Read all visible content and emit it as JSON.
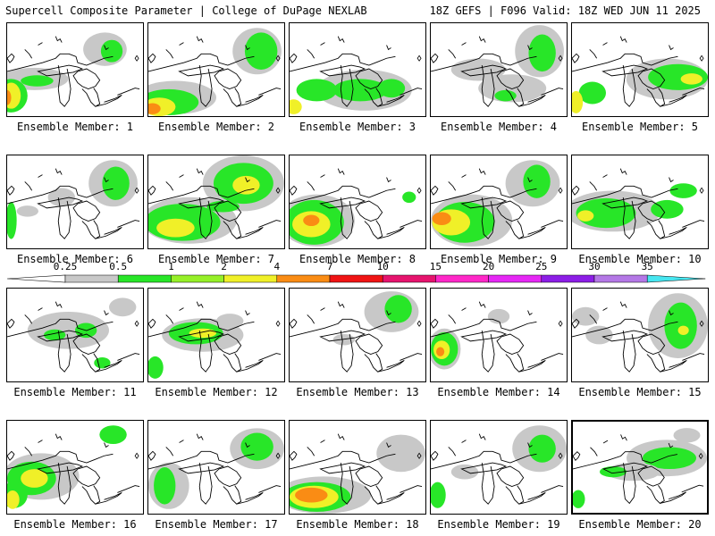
{
  "header": {
    "title": "Supercell Composite Parameter | College of DuPage NEXLAB",
    "run_info": "18Z GEFS | F096 Valid: 18Z WED JUN 11 2025"
  },
  "panel_label_prefix": "Ensemble Member: ",
  "members": [
    {
      "label": "Ensemble Member: 1",
      "blobs": [
        [
          "gray",
          0.72,
          0.28,
          0.16,
          0.18
        ],
        [
          "green",
          0.77,
          0.3,
          0.08,
          0.12
        ],
        [
          "gray",
          0.2,
          0.6,
          0.25,
          0.12
        ],
        [
          "green",
          0.22,
          0.62,
          0.12,
          0.06
        ],
        [
          "green",
          0.03,
          0.78,
          0.12,
          0.18
        ],
        [
          "yellow",
          0.03,
          0.78,
          0.07,
          0.14
        ],
        [
          "orange",
          0.0,
          0.8,
          0.03,
          0.08
        ]
      ]
    },
    {
      "label": "Ensemble Member: 2",
      "blobs": [
        [
          "gray",
          0.8,
          0.3,
          0.18,
          0.25
        ],
        [
          "green",
          0.83,
          0.3,
          0.12,
          0.2
        ],
        [
          "gray",
          0.2,
          0.8,
          0.3,
          0.18
        ],
        [
          "green",
          0.15,
          0.85,
          0.22,
          0.14
        ],
        [
          "yellow",
          0.08,
          0.9,
          0.12,
          0.1
        ],
        [
          "orange",
          0.03,
          0.92,
          0.06,
          0.06
        ]
      ]
    },
    {
      "label": "Ensemble Member: 3",
      "blobs": [
        [
          "gray",
          0.55,
          0.72,
          0.35,
          0.22
        ],
        [
          "green",
          0.52,
          0.72,
          0.2,
          0.12
        ],
        [
          "green",
          0.75,
          0.7,
          0.1,
          0.1
        ],
        [
          "green",
          0.2,
          0.72,
          0.15,
          0.12
        ],
        [
          "yellow",
          0.03,
          0.9,
          0.06,
          0.08
        ]
      ]
    },
    {
      "label": "Ensemble Member: 4",
      "blobs": [
        [
          "gray",
          0.8,
          0.3,
          0.18,
          0.28
        ],
        [
          "green",
          0.82,
          0.32,
          0.1,
          0.2
        ],
        [
          "gray",
          0.35,
          0.5,
          0.2,
          0.12
        ],
        [
          "gray",
          0.6,
          0.7,
          0.25,
          0.15
        ],
        [
          "green",
          0.55,
          0.78,
          0.08,
          0.06
        ]
      ]
    },
    {
      "label": "Ensemble Member: 5",
      "blobs": [
        [
          "gray",
          0.7,
          0.6,
          0.3,
          0.22
        ],
        [
          "green",
          0.78,
          0.58,
          0.22,
          0.14
        ],
        [
          "yellow",
          0.88,
          0.6,
          0.08,
          0.06
        ],
        [
          "green",
          0.15,
          0.75,
          0.1,
          0.12
        ],
        [
          "yellow",
          0.03,
          0.85,
          0.05,
          0.12
        ]
      ]
    },
    {
      "label": "Ensemble Member: 6",
      "blobs": [
        [
          "gray",
          0.78,
          0.3,
          0.18,
          0.25
        ],
        [
          "green",
          0.8,
          0.3,
          0.1,
          0.18
        ],
        [
          "gray",
          0.4,
          0.45,
          0.1,
          0.1
        ],
        [
          "green",
          0.03,
          0.7,
          0.04,
          0.2
        ],
        [
          "gray",
          0.15,
          0.6,
          0.08,
          0.06
        ]
      ]
    },
    {
      "label": "Ensemble Member: 7",
      "blobs": [
        [
          "gray",
          0.7,
          0.3,
          0.3,
          0.3
        ],
        [
          "green",
          0.7,
          0.3,
          0.22,
          0.22
        ],
        [
          "yellow",
          0.72,
          0.32,
          0.1,
          0.1
        ],
        [
          "gray",
          0.3,
          0.7,
          0.35,
          0.25
        ],
        [
          "green",
          0.25,
          0.72,
          0.28,
          0.2
        ],
        [
          "yellow",
          0.2,
          0.78,
          0.14,
          0.1
        ],
        [
          "green",
          0.55,
          0.55,
          0.12,
          0.06
        ]
      ]
    },
    {
      "label": "Ensemble Member: 8",
      "blobs": [
        [
          "gray",
          0.2,
          0.7,
          0.28,
          0.28
        ],
        [
          "green",
          0.18,
          0.72,
          0.22,
          0.24
        ],
        [
          "yellow",
          0.16,
          0.74,
          0.14,
          0.14
        ],
        [
          "orange",
          0.16,
          0.7,
          0.06,
          0.06
        ],
        [
          "green",
          0.88,
          0.45,
          0.05,
          0.06
        ]
      ]
    },
    {
      "label": "Ensemble Member: 9",
      "blobs": [
        [
          "gray",
          0.75,
          0.3,
          0.2,
          0.25
        ],
        [
          "green",
          0.78,
          0.28,
          0.1,
          0.18
        ],
        [
          "gray",
          0.3,
          0.7,
          0.3,
          0.28
        ],
        [
          "green",
          0.25,
          0.72,
          0.22,
          0.22
        ],
        [
          "yellow",
          0.15,
          0.72,
          0.14,
          0.14
        ],
        [
          "orange",
          0.08,
          0.68,
          0.07,
          0.07
        ]
      ]
    },
    {
      "label": "Ensemble Member: 10",
      "blobs": [
        [
          "gray",
          0.3,
          0.6,
          0.35,
          0.22
        ],
        [
          "green",
          0.25,
          0.62,
          0.22,
          0.16
        ],
        [
          "green",
          0.7,
          0.58,
          0.12,
          0.1
        ],
        [
          "green",
          0.82,
          0.38,
          0.1,
          0.08
        ],
        [
          "yellow",
          0.1,
          0.65,
          0.06,
          0.06
        ]
      ]
    },
    {
      "label": "Ensemble Member: 11",
      "blobs": [
        [
          "gray",
          0.45,
          0.45,
          0.3,
          0.2
        ],
        [
          "green",
          0.58,
          0.45,
          0.08,
          0.08
        ],
        [
          "green",
          0.35,
          0.5,
          0.08,
          0.06
        ],
        [
          "gray",
          0.85,
          0.2,
          0.1,
          0.1
        ],
        [
          "green",
          0.7,
          0.8,
          0.06,
          0.06
        ]
      ]
    },
    {
      "label": "Ensemble Member: 12",
      "blobs": [
        [
          "gray",
          0.4,
          0.5,
          0.3,
          0.18
        ],
        [
          "green",
          0.35,
          0.48,
          0.2,
          0.12
        ],
        [
          "yellow",
          0.4,
          0.48,
          0.1,
          0.05
        ],
        [
          "green",
          0.05,
          0.85,
          0.06,
          0.12
        ],
        [
          "gray",
          0.6,
          0.35,
          0.1,
          0.08
        ]
      ]
    },
    {
      "label": "Ensemble Member: 13",
      "blobs": [
        [
          "gray",
          0.75,
          0.25,
          0.2,
          0.22
        ],
        [
          "green",
          0.8,
          0.22,
          0.1,
          0.15
        ],
        [
          "gray",
          0.4,
          0.55,
          0.08,
          0.06
        ]
      ]
    },
    {
      "label": "Ensemble Member: 14",
      "blobs": [
        [
          "gray",
          0.1,
          0.65,
          0.12,
          0.22
        ],
        [
          "green",
          0.1,
          0.65,
          0.1,
          0.18
        ],
        [
          "yellow",
          0.08,
          0.66,
          0.06,
          0.1
        ],
        [
          "orange",
          0.07,
          0.68,
          0.03,
          0.05
        ],
        [
          "gray",
          0.5,
          0.3,
          0.08,
          0.08
        ]
      ]
    },
    {
      "label": "Ensemble Member: 15",
      "blobs": [
        [
          "gray",
          0.78,
          0.4,
          0.22,
          0.35
        ],
        [
          "green",
          0.8,
          0.4,
          0.12,
          0.25
        ],
        [
          "yellow",
          0.82,
          0.45,
          0.04,
          0.05
        ],
        [
          "gray",
          0.1,
          0.3,
          0.1,
          0.1
        ],
        [
          "gray",
          0.2,
          0.5,
          0.1,
          0.1
        ]
      ]
    },
    {
      "label": "Ensemble Member: 16",
      "blobs": [
        [
          "gray",
          0.25,
          0.6,
          0.28,
          0.25
        ],
        [
          "green",
          0.18,
          0.62,
          0.18,
          0.18
        ],
        [
          "yellow",
          0.2,
          0.62,
          0.1,
          0.1
        ],
        [
          "green",
          0.05,
          0.8,
          0.1,
          0.14
        ],
        [
          "yellow",
          0.04,
          0.85,
          0.05,
          0.1
        ],
        [
          "green",
          0.78,
          0.15,
          0.1,
          0.1
        ]
      ]
    },
    {
      "label": "Ensemble Member: 17",
      "blobs": [
        [
          "gray",
          0.8,
          0.3,
          0.2,
          0.22
        ],
        [
          "green",
          0.8,
          0.28,
          0.12,
          0.15
        ],
        [
          "gray",
          0.15,
          0.7,
          0.15,
          0.25
        ],
        [
          "green",
          0.12,
          0.7,
          0.08,
          0.2
        ]
      ]
    },
    {
      "label": "Ensemble Member: 18",
      "blobs": [
        [
          "gray",
          0.25,
          0.8,
          0.35,
          0.2
        ],
        [
          "green",
          0.2,
          0.82,
          0.25,
          0.16
        ],
        [
          "yellow",
          0.18,
          0.82,
          0.18,
          0.12
        ],
        [
          "orange",
          0.16,
          0.8,
          0.12,
          0.08
        ],
        [
          "green",
          0.85,
          0.35,
          0.12,
          0.12
        ],
        [
          "gray",
          0.82,
          0.35,
          0.18,
          0.2
        ]
      ]
    },
    {
      "label": "Ensemble Member: 19",
      "blobs": [
        [
          "gray",
          0.8,
          0.3,
          0.2,
          0.25
        ],
        [
          "green",
          0.82,
          0.3,
          0.1,
          0.15
        ],
        [
          "green",
          0.05,
          0.8,
          0.06,
          0.14
        ],
        [
          "gray",
          0.25,
          0.55,
          0.1,
          0.08
        ]
      ]
    },
    {
      "label": "Ensemble Member: 20",
      "selected": true,
      "blobs": [
        [
          "gray",
          0.7,
          0.4,
          0.3,
          0.2
        ],
        [
          "green",
          0.72,
          0.4,
          0.2,
          0.12
        ],
        [
          "gray",
          0.45,
          0.55,
          0.2,
          0.1
        ],
        [
          "green",
          0.3,
          0.55,
          0.1,
          0.06
        ],
        [
          "green",
          0.04,
          0.85,
          0.05,
          0.1
        ],
        [
          "gray",
          0.85,
          0.15,
          0.1,
          0.08
        ]
      ]
    }
  ],
  "colorbar": {
    "bins": [
      {
        "label": "0.25",
        "color": "#c8c8c8"
      },
      {
        "label": "0.5",
        "color": "#28e628"
      },
      {
        "label": "1",
        "color": "#96f028"
      },
      {
        "label": "2",
        "color": "#f0f028"
      },
      {
        "label": "4",
        "color": "#fa8c14"
      },
      {
        "label": "7",
        "color": "#f01414"
      },
      {
        "label": "10",
        "color": "#e6146e"
      },
      {
        "label": "15",
        "color": "#ff28c8"
      },
      {
        "label": "20",
        "color": "#e628f5"
      },
      {
        "label": "25",
        "color": "#8c1ee6"
      },
      {
        "label": "30",
        "color": "#b478e6"
      },
      {
        "label": "35",
        "color": "#46e6f0"
      }
    ]
  },
  "colors": {
    "gray": "#c8c8c8",
    "green": "#28e628",
    "yellow": "#f0f028",
    "orange": "#fa8c14"
  }
}
